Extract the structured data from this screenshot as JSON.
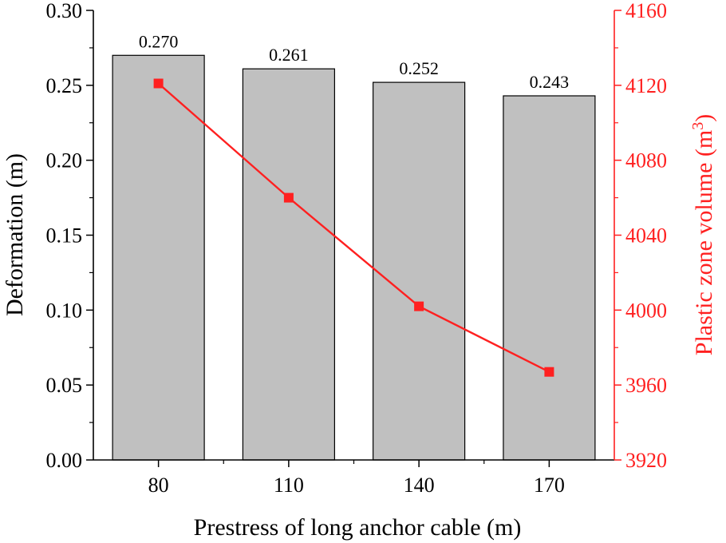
{
  "chart_data": {
    "type": "bar",
    "categories": [
      "80",
      "110",
      "140",
      "170"
    ],
    "xlabel": "Prestress of long anchor cable (m)",
    "series": [
      {
        "name": "Deformation",
        "kind": "bar",
        "axis": "left",
        "values": [
          0.27,
          0.261,
          0.252,
          0.243
        ],
        "data_labels": [
          "0.270",
          "0.261",
          "0.252",
          "0.243"
        ],
        "color": "#c0c0c0"
      },
      {
        "name": "Plastic zone volume",
        "kind": "line",
        "axis": "right",
        "values": [
          4121,
          4060,
          4002,
          3967
        ],
        "color": "#ff2020"
      }
    ],
    "left_axis": {
      "label": "Deformation (m)",
      "ylim": [
        0.0,
        0.3
      ],
      "ticks": [
        "0.00",
        "0.05",
        "0.10",
        "0.15",
        "0.20",
        "0.25",
        "0.30"
      ],
      "color": "#000000"
    },
    "right_axis": {
      "label_main": "Plastic zone volume (m",
      "label_sup": "3",
      "label_end": ")",
      "ylim": [
        3920,
        4160
      ],
      "ticks": [
        "3920",
        "3960",
        "4000",
        "4040",
        "4080",
        "4120",
        "4160"
      ],
      "color": "#ff2020"
    },
    "grid": false
  }
}
